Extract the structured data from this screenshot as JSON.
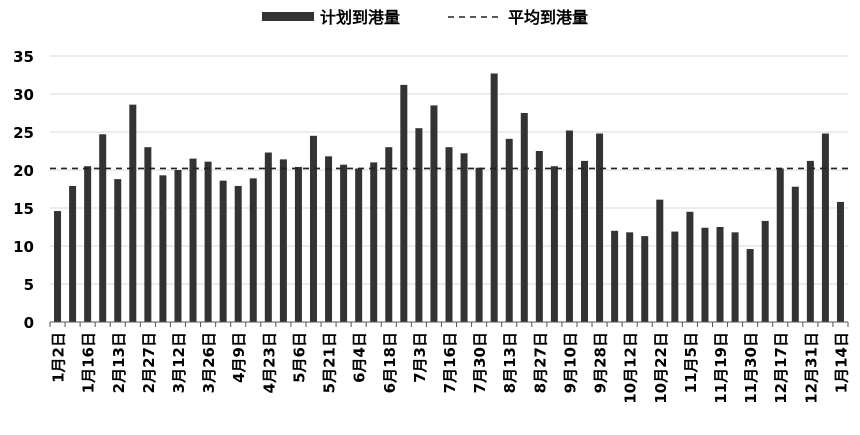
{
  "chart_data": {
    "type": "bar",
    "title": "",
    "xlabel": "",
    "ylabel": "",
    "ylim": [
      0,
      35
    ],
    "yticks": [
      0,
      5,
      10,
      15,
      20,
      25,
      30,
      35
    ],
    "grid": true,
    "legend_position": "top-center",
    "legend": {
      "bar_label": "计划到港量",
      "line_label": "平均到港量"
    },
    "average_line": 20.2,
    "categories": [
      "1月2日",
      "",
      "1月16日",
      "",
      "2月13日",
      "",
      "2月27日",
      "",
      "3月12日",
      "",
      "3月26日",
      "",
      "4月9日",
      "",
      "4月23日",
      "",
      "5月6日",
      "",
      "5月21日",
      "",
      "6月4日",
      "",
      "6月18日",
      "",
      "7月3日",
      "",
      "7月16日",
      "",
      "7月30日",
      "",
      "8月13日",
      "",
      "8月27日",
      "",
      "9月10日",
      "",
      "9月28日",
      "",
      "10月12日",
      "",
      "10月22日",
      "",
      "11月5日",
      "",
      "11月19日",
      "",
      "11月30日",
      "",
      "12月17日",
      "",
      "12月31日",
      "",
      "1月14日"
    ],
    "series": [
      {
        "name": "计划到港量",
        "values": [
          14.6,
          17.9,
          20.5,
          24.7,
          18.8,
          28.6,
          23.0,
          19.3,
          20.0,
          21.5,
          21.1,
          18.6,
          17.9,
          18.9,
          22.3,
          21.4,
          20.4,
          24.5,
          21.8,
          20.7,
          20.2,
          21.0,
          23.0,
          31.2,
          25.5,
          28.5,
          23.0,
          22.2,
          20.3,
          32.7,
          24.1,
          27.5,
          22.5,
          20.5,
          25.2,
          21.2,
          24.8,
          12.0,
          11.8,
          11.3,
          16.1,
          11.9,
          14.5,
          12.4,
          12.5,
          11.8,
          9.6,
          13.3,
          20.2,
          17.8,
          21.2,
          24.8,
          15.8
        ],
        "color": "#333333"
      },
      {
        "name": "平均到港量",
        "type": "dashed-line",
        "value": 20.2,
        "color": "#222222"
      }
    ]
  }
}
